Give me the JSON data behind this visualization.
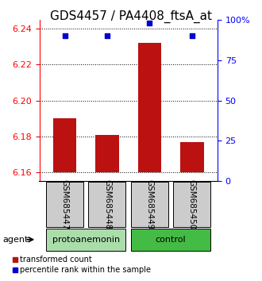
{
  "title": "GDS4457 / PA4408_ftsA_at",
  "samples": [
    "GSM685447",
    "GSM685448",
    "GSM685449",
    "GSM685450"
  ],
  "bar_values": [
    6.19,
    6.181,
    6.232,
    6.177
  ],
  "bar_bottom": 6.16,
  "percentile_values": [
    90,
    90,
    98,
    90
  ],
  "ylim_left": [
    6.155,
    6.245
  ],
  "yticks_left": [
    6.16,
    6.18,
    6.2,
    6.22,
    6.24
  ],
  "yticks_right": [
    0,
    25,
    50,
    75,
    100
  ],
  "ytick_labels_right": [
    "0",
    "25",
    "50",
    "75",
    "100%"
  ],
  "bar_color": "#bb1111",
  "dot_color": "#0000cc",
  "groups": [
    {
      "label": "protoanemonin",
      "samples": [
        0,
        1
      ],
      "color": "#aaddaa"
    },
    {
      "label": "control",
      "samples": [
        2,
        3
      ],
      "color": "#44bb44"
    }
  ],
  "group_label": "agent",
  "legend_bar_label": "transformed count",
  "legend_dot_label": "percentile rank within the sample",
  "plot_bg_color": "#ffffff",
  "sample_box_color": "#cccccc",
  "title_fontsize": 11,
  "tick_fontsize": 8,
  "label_fontsize": 8,
  "sample_label_fontsize": 7.5
}
